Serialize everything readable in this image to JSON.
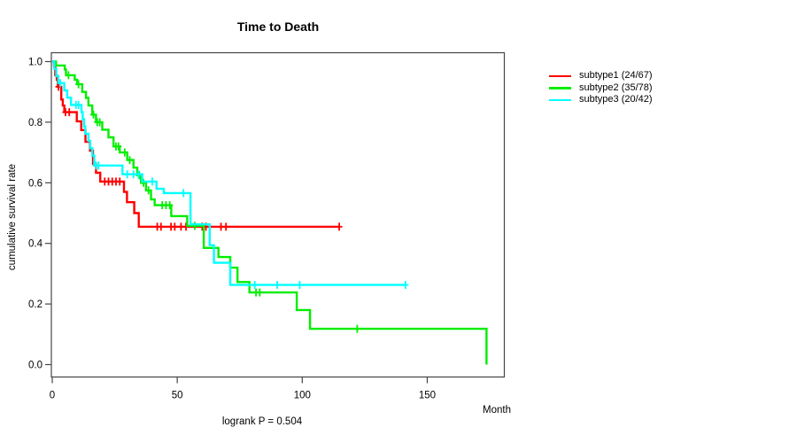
{
  "title": "Time to Death",
  "footer": {
    "annotation": "logrank P = 0.504"
  },
  "axes_colors": {
    "axis_line": "#454545",
    "text": "#000000"
  },
  "chart_data": {
    "type": "line",
    "subtype": "kaplan-meier-step",
    "title": "Time to Death",
    "xlabel": "Month",
    "ylabel": "cumulative survival rate",
    "annotation": "logrank P = 0.504",
    "xlim": [
      0,
      181
    ],
    "ylim": [
      0.0,
      1.0
    ],
    "x_ticks": [
      0,
      50,
      100,
      150
    ],
    "y_ticks": [
      0.0,
      0.2,
      0.4,
      0.6,
      0.8,
      1.0
    ],
    "grid": false,
    "legend_position": "right-outside",
    "series": [
      {
        "name": "subtype1 (24/67)",
        "color": "#FF0000",
        "deaths": 24,
        "n": 67,
        "points": [
          [
            0,
            1.0
          ],
          [
            0.7,
            0.985
          ],
          [
            1.2,
            0.955
          ],
          [
            1.8,
            0.94
          ],
          [
            2.2,
            0.917
          ],
          [
            3.6,
            0.875
          ],
          [
            4.2,
            0.855
          ],
          [
            4.8,
            0.833
          ],
          [
            9.8,
            0.803
          ],
          [
            11.6,
            0.774
          ],
          [
            13.3,
            0.735
          ],
          [
            15.1,
            0.706
          ],
          [
            16.3,
            0.662
          ],
          [
            17.5,
            0.633
          ],
          [
            19.2,
            0.604
          ],
          [
            28.7,
            0.57
          ],
          [
            29.9,
            0.536
          ],
          [
            32.8,
            0.5
          ],
          [
            34.6,
            0.455
          ],
          [
            114.8,
            0.455
          ]
        ],
        "censors": [
          [
            2.5,
            0.917
          ],
          [
            5.3,
            0.833
          ],
          [
            6.8,
            0.833
          ],
          [
            21,
            0.604
          ],
          [
            22.5,
            0.604
          ],
          [
            24,
            0.604
          ],
          [
            25.5,
            0.604
          ],
          [
            27,
            0.604
          ],
          [
            42,
            0.455
          ],
          [
            43.5,
            0.455
          ],
          [
            47.5,
            0.455
          ],
          [
            49,
            0.455
          ],
          [
            51.5,
            0.455
          ],
          [
            53.5,
            0.455
          ],
          [
            60,
            0.455
          ],
          [
            61.5,
            0.455
          ],
          [
            67.5,
            0.455
          ],
          [
            69.5,
            0.455
          ],
          [
            114.8,
            0.455
          ]
        ]
      },
      {
        "name": "subtype2 (35/78)",
        "color": "#00EE00",
        "deaths": 35,
        "n": 78,
        "points": [
          [
            0,
            1.0
          ],
          [
            1.5,
            0.987
          ],
          [
            5,
            0.974
          ],
          [
            5.5,
            0.955
          ],
          [
            9,
            0.94
          ],
          [
            10,
            0.925
          ],
          [
            12,
            0.9
          ],
          [
            13.5,
            0.88
          ],
          [
            14.5,
            0.855
          ],
          [
            16,
            0.825
          ],
          [
            17.5,
            0.8
          ],
          [
            20,
            0.775
          ],
          [
            22.5,
            0.75
          ],
          [
            24.5,
            0.72
          ],
          [
            27,
            0.7
          ],
          [
            30,
            0.675
          ],
          [
            32.5,
            0.65
          ],
          [
            34,
            0.625
          ],
          [
            35.5,
            0.6
          ],
          [
            37.5,
            0.575
          ],
          [
            39.5,
            0.545
          ],
          [
            41,
            0.526
          ],
          [
            47.6,
            0.49
          ],
          [
            54,
            0.458
          ],
          [
            60.6,
            0.385
          ],
          [
            66.5,
            0.355
          ],
          [
            71.2,
            0.32
          ],
          [
            74.1,
            0.2725
          ],
          [
            78.9,
            0.238
          ],
          [
            97.8,
            0.18
          ],
          [
            103.1,
            0.118
          ],
          [
            173.7,
            0.0
          ]
        ],
        "censors": [
          [
            6.5,
            0.955
          ],
          [
            10.5,
            0.925
          ],
          [
            16.5,
            0.825
          ],
          [
            18,
            0.8
          ],
          [
            19,
            0.8
          ],
          [
            25.5,
            0.72
          ],
          [
            26.5,
            0.72
          ],
          [
            29,
            0.7
          ],
          [
            31,
            0.675
          ],
          [
            34.8,
            0.625
          ],
          [
            36.5,
            0.6
          ],
          [
            38.5,
            0.575
          ],
          [
            44,
            0.526
          ],
          [
            45.5,
            0.526
          ],
          [
            47,
            0.526
          ],
          [
            57,
            0.458
          ],
          [
            81.5,
            0.238
          ],
          [
            83,
            0.238
          ],
          [
            122,
            0.118
          ]
        ]
      },
      {
        "name": "subtype3 (20/42)",
        "color": "#00FFFF",
        "deaths": 20,
        "n": 42,
        "points": [
          [
            0,
            1.0
          ],
          [
            0.8,
            0.976
          ],
          [
            1.6,
            0.952
          ],
          [
            2.4,
            0.929
          ],
          [
            4.8,
            0.905
          ],
          [
            6,
            0.881
          ],
          [
            7.5,
            0.857
          ],
          [
            11.7,
            0.833
          ],
          [
            12.2,
            0.81
          ],
          [
            12.7,
            0.786
          ],
          [
            13.2,
            0.762
          ],
          [
            14.5,
            0.738
          ],
          [
            15.2,
            0.714
          ],
          [
            16,
            0.69
          ],
          [
            16.8,
            0.657
          ],
          [
            28.1,
            0.628
          ],
          [
            36,
            0.604
          ],
          [
            41.7,
            0.58
          ],
          [
            44.6,
            0.566
          ],
          [
            55.3,
            0.463
          ],
          [
            63,
            0.394
          ],
          [
            64.7,
            0.336
          ],
          [
            71.2,
            0.263
          ],
          [
            141.3,
            0.263
          ]
        ],
        "censors": [
          [
            3.2,
            0.929
          ],
          [
            9.5,
            0.857
          ],
          [
            10.5,
            0.857
          ],
          [
            17.5,
            0.657
          ],
          [
            18.5,
            0.657
          ],
          [
            30,
            0.628
          ],
          [
            32.5,
            0.628
          ],
          [
            34.5,
            0.628
          ],
          [
            40,
            0.604
          ],
          [
            52.5,
            0.566
          ],
          [
            81,
            0.263
          ],
          [
            90,
            0.263
          ],
          [
            99,
            0.263
          ],
          [
            141.3,
            0.263
          ]
        ]
      }
    ]
  }
}
